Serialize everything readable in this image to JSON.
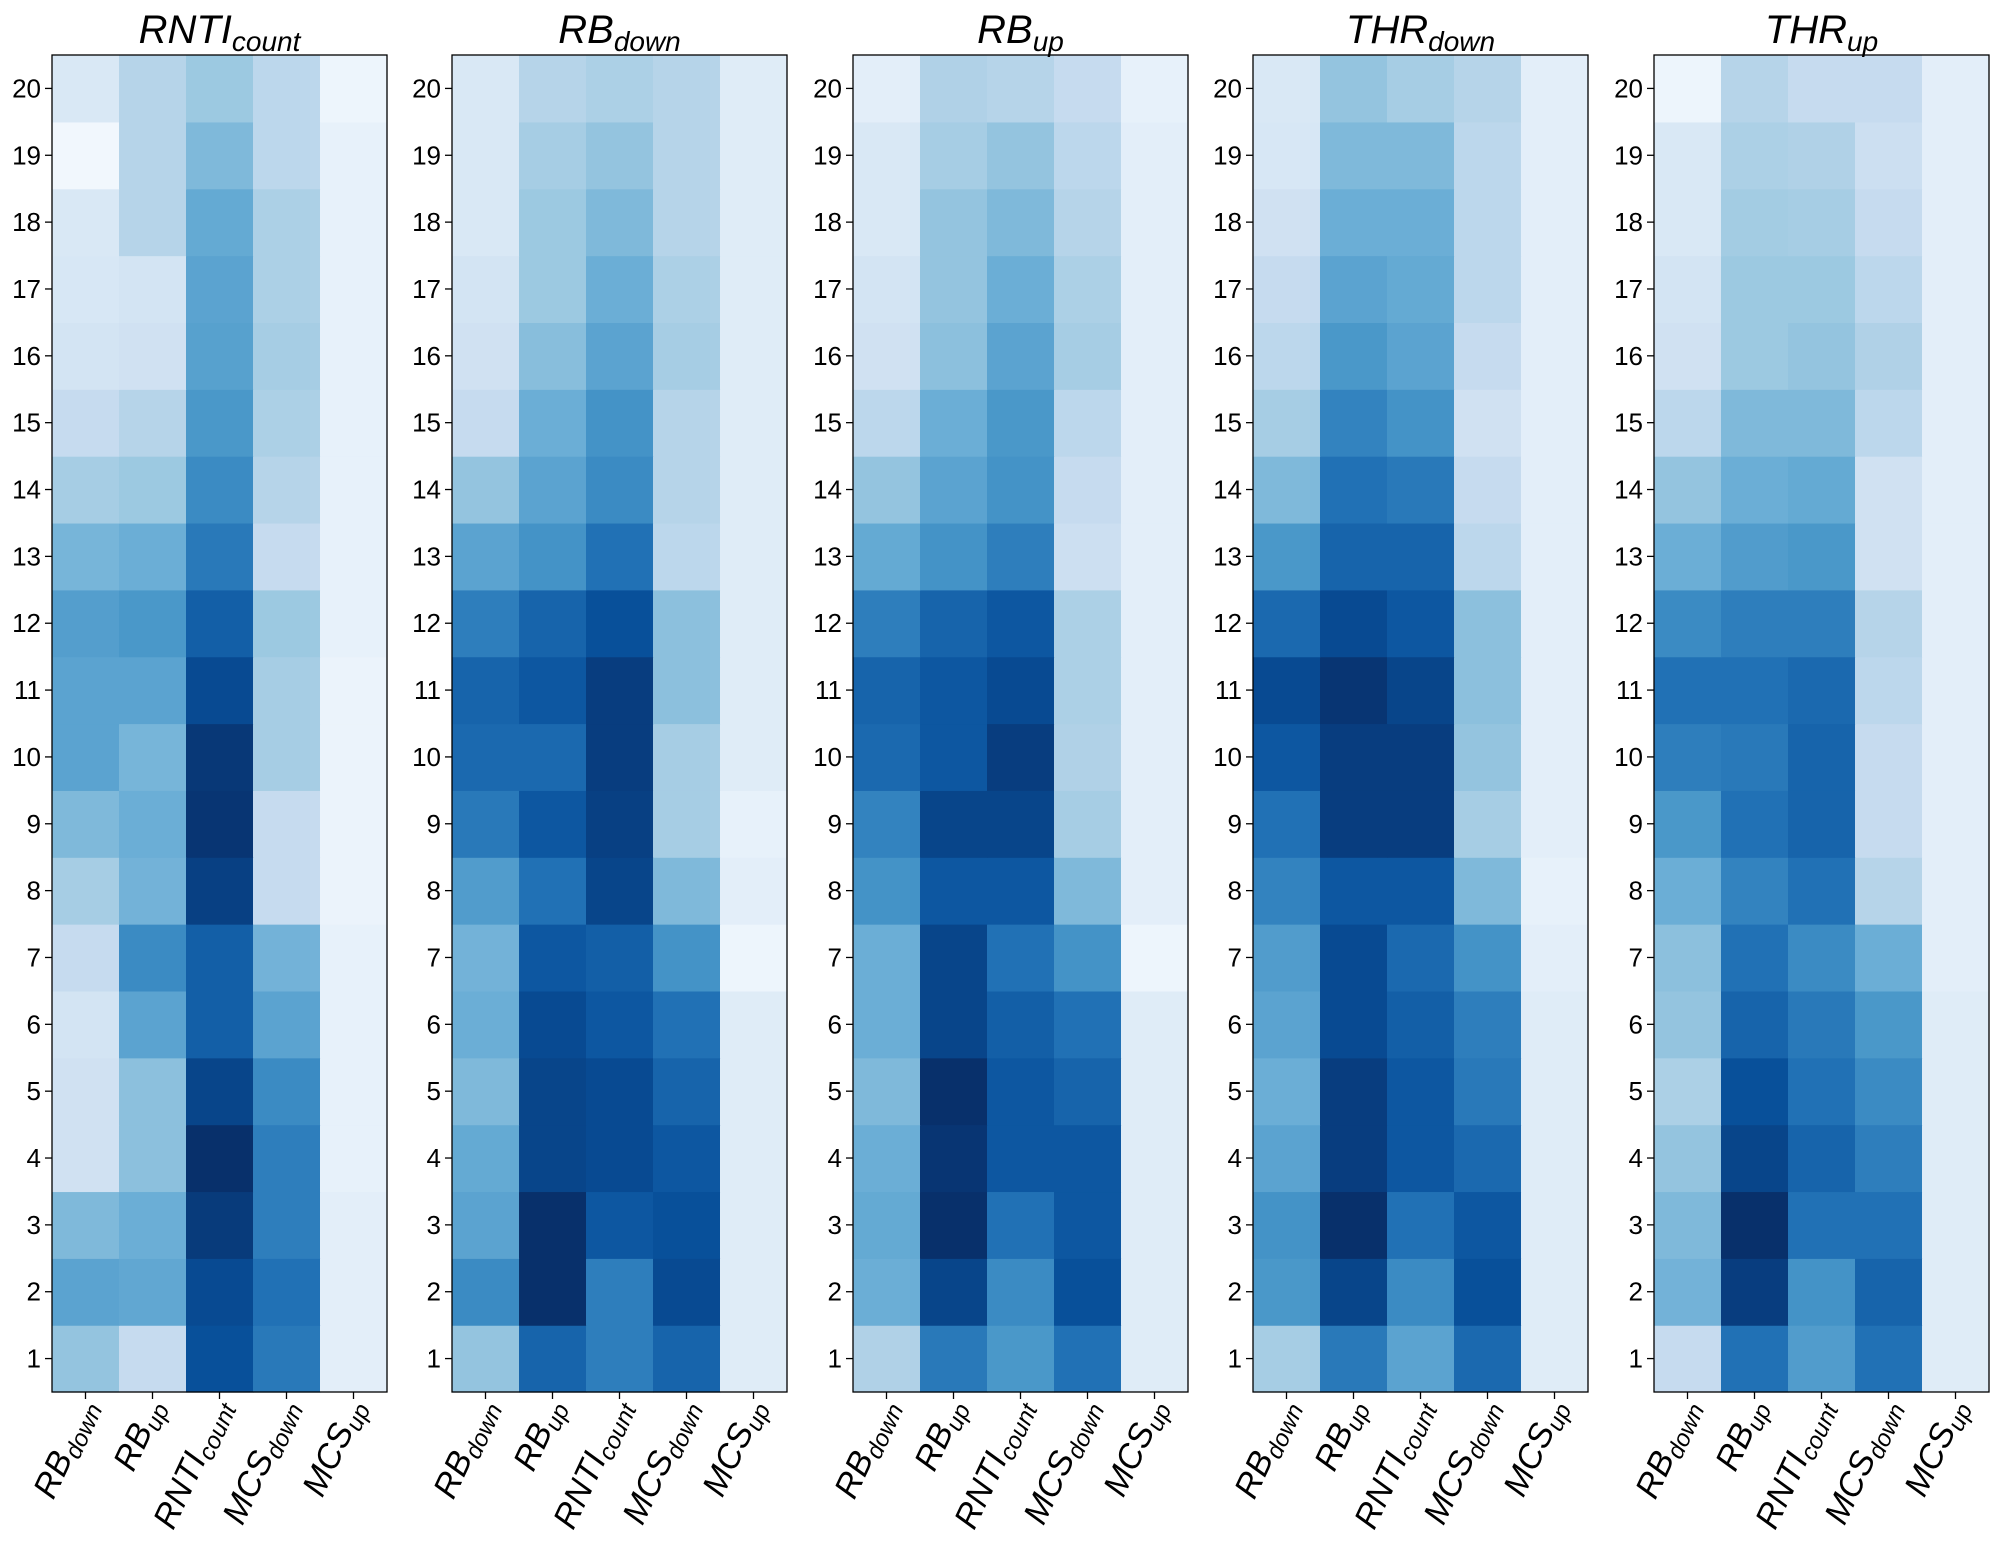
{
  "figure": {
    "row_labels": [
      "1",
      "2",
      "3",
      "4",
      "5",
      "6",
      "7",
      "8",
      "9",
      "10",
      "11",
      "12",
      "13",
      "14",
      "15",
      "16",
      "17",
      "18",
      "19",
      "20"
    ],
    "col_labels": [
      {
        "base": "RB",
        "sub": "down"
      },
      {
        "base": "RB",
        "sub": "up"
      },
      {
        "base": "RNTI",
        "sub": "count"
      },
      {
        "base": "MCS",
        "sub": "down"
      },
      {
        "base": "MCS",
        "sub": "up"
      }
    ],
    "colormap": "Blues",
    "colors": {
      "low": "#f7fbff",
      "high": "#08306b"
    }
  },
  "chart_data": [
    {
      "type": "heatmap",
      "title": {
        "base": "RNTI",
        "sub": "count"
      },
      "rows": [
        "1",
        "2",
        "3",
        "4",
        "5",
        "6",
        "7",
        "8",
        "9",
        "10",
        "11",
        "12",
        "13",
        "14",
        "15",
        "16",
        "17",
        "18",
        "19",
        "20"
      ],
      "columns": [
        "RB_down",
        "RB_up",
        "RNTI_count",
        "MCS_down",
        "MCS_up"
      ],
      "values": [
        [
          0.4,
          0.25,
          0.88,
          0.72,
          0.1
        ],
        [
          0.55,
          0.53,
          0.9,
          0.75,
          0.1
        ],
        [
          0.45,
          0.5,
          0.96,
          0.7,
          0.1
        ],
        [
          0.2,
          0.42,
          1.0,
          0.7,
          0.08
        ],
        [
          0.2,
          0.42,
          0.92,
          0.65,
          0.08
        ],
        [
          0.18,
          0.55,
          0.82,
          0.55,
          0.08
        ],
        [
          0.25,
          0.65,
          0.82,
          0.48,
          0.08
        ],
        [
          0.35,
          0.48,
          0.94,
          0.25,
          0.06
        ],
        [
          0.45,
          0.5,
          0.98,
          0.25,
          0.06
        ],
        [
          0.55,
          0.47,
          0.97,
          0.35,
          0.06
        ],
        [
          0.55,
          0.55,
          0.9,
          0.35,
          0.06
        ],
        [
          0.57,
          0.6,
          0.82,
          0.38,
          0.08
        ],
        [
          0.47,
          0.5,
          0.72,
          0.25,
          0.08
        ],
        [
          0.35,
          0.38,
          0.65,
          0.3,
          0.08
        ],
        [
          0.25,
          0.3,
          0.6,
          0.33,
          0.08
        ],
        [
          0.18,
          0.2,
          0.56,
          0.35,
          0.08
        ],
        [
          0.16,
          0.18,
          0.55,
          0.33,
          0.08
        ],
        [
          0.15,
          0.3,
          0.52,
          0.33,
          0.08
        ],
        [
          0.03,
          0.3,
          0.45,
          0.28,
          0.08
        ],
        [
          0.15,
          0.3,
          0.38,
          0.28,
          0.05
        ]
      ]
    },
    {
      "type": "heatmap",
      "title": {
        "base": "RB",
        "sub": "down"
      },
      "rows": [
        "1",
        "2",
        "3",
        "4",
        "5",
        "6",
        "7",
        "8",
        "9",
        "10",
        "11",
        "12",
        "13",
        "14",
        "15",
        "16",
        "17",
        "18",
        "19",
        "20"
      ],
      "columns": [
        "RB_down",
        "RB_up",
        "RNTI_count",
        "MCS_down",
        "MCS_up"
      ],
      "values": [
        [
          0.4,
          0.8,
          0.7,
          0.8,
          0.12
        ],
        [
          0.65,
          1.0,
          0.7,
          0.9,
          0.12
        ],
        [
          0.55,
          1.0,
          0.85,
          0.88,
          0.12
        ],
        [
          0.52,
          0.92,
          0.9,
          0.85,
          0.12
        ],
        [
          0.45,
          0.92,
          0.9,
          0.8,
          0.12
        ],
        [
          0.5,
          0.9,
          0.85,
          0.75,
          0.12
        ],
        [
          0.48,
          0.85,
          0.82,
          0.62,
          0.05
        ],
        [
          0.58,
          0.75,
          0.92,
          0.45,
          0.1
        ],
        [
          0.72,
          0.85,
          0.94,
          0.35,
          0.08
        ],
        [
          0.78,
          0.78,
          0.95,
          0.35,
          0.12
        ],
        [
          0.8,
          0.85,
          0.95,
          0.42,
          0.12
        ],
        [
          0.7,
          0.8,
          0.88,
          0.42,
          0.12
        ],
        [
          0.55,
          0.62,
          0.75,
          0.28,
          0.12
        ],
        [
          0.4,
          0.55,
          0.65,
          0.3,
          0.12
        ],
        [
          0.25,
          0.5,
          0.62,
          0.3,
          0.12
        ],
        [
          0.2,
          0.43,
          0.55,
          0.35,
          0.12
        ],
        [
          0.18,
          0.38,
          0.5,
          0.33,
          0.12
        ],
        [
          0.15,
          0.38,
          0.45,
          0.3,
          0.12
        ],
        [
          0.15,
          0.35,
          0.4,
          0.3,
          0.12
        ],
        [
          0.15,
          0.3,
          0.33,
          0.3,
          0.12
        ]
      ]
    },
    {
      "type": "heatmap",
      "title": {
        "base": "RB",
        "sub": "up"
      },
      "rows": [
        "1",
        "2",
        "3",
        "4",
        "5",
        "6",
        "7",
        "8",
        "9",
        "10",
        "11",
        "12",
        "13",
        "14",
        "15",
        "16",
        "17",
        "18",
        "19",
        "20"
      ],
      "columns": [
        "RB_down",
        "RB_up",
        "RNTI_count",
        "MCS_down",
        "MCS_up"
      ],
      "values": [
        [
          0.32,
          0.72,
          0.6,
          0.75,
          0.12
        ],
        [
          0.5,
          0.92,
          0.65,
          0.88,
          0.12
        ],
        [
          0.52,
          1.0,
          0.75,
          0.85,
          0.12
        ],
        [
          0.5,
          0.98,
          0.85,
          0.85,
          0.12
        ],
        [
          0.45,
          1.0,
          0.85,
          0.8,
          0.12
        ],
        [
          0.5,
          0.92,
          0.82,
          0.75,
          0.12
        ],
        [
          0.5,
          0.92,
          0.75,
          0.62,
          0.05
        ],
        [
          0.62,
          0.85,
          0.85,
          0.45,
          0.1
        ],
        [
          0.68,
          0.92,
          0.92,
          0.35,
          0.1
        ],
        [
          0.78,
          0.85,
          0.95,
          0.32,
          0.1
        ],
        [
          0.8,
          0.85,
          0.9,
          0.33,
          0.1
        ],
        [
          0.7,
          0.8,
          0.85,
          0.33,
          0.1
        ],
        [
          0.52,
          0.62,
          0.7,
          0.22,
          0.1
        ],
        [
          0.4,
          0.55,
          0.62,
          0.25,
          0.1
        ],
        [
          0.28,
          0.5,
          0.6,
          0.28,
          0.1
        ],
        [
          0.2,
          0.42,
          0.55,
          0.35,
          0.1
        ],
        [
          0.18,
          0.4,
          0.5,
          0.33,
          0.1
        ],
        [
          0.15,
          0.4,
          0.45,
          0.3,
          0.1
        ],
        [
          0.15,
          0.35,
          0.4,
          0.28,
          0.1
        ],
        [
          0.1,
          0.32,
          0.3,
          0.25,
          0.08
        ]
      ]
    },
    {
      "type": "heatmap",
      "title": {
        "base": "THR",
        "sub": "down"
      },
      "rows": [
        "1",
        "2",
        "3",
        "4",
        "5",
        "6",
        "7",
        "8",
        "9",
        "10",
        "11",
        "12",
        "13",
        "14",
        "15",
        "16",
        "17",
        "18",
        "19",
        "20"
      ],
      "columns": [
        "RB_down",
        "RB_up",
        "RNTI_count",
        "MCS_down",
        "MCS_up"
      ],
      "values": [
        [
          0.35,
          0.72,
          0.55,
          0.78,
          0.12
        ],
        [
          0.6,
          0.92,
          0.65,
          0.88,
          0.12
        ],
        [
          0.62,
          1.0,
          0.75,
          0.85,
          0.12
        ],
        [
          0.55,
          0.95,
          0.85,
          0.78,
          0.12
        ],
        [
          0.5,
          0.95,
          0.85,
          0.72,
          0.12
        ],
        [
          0.55,
          0.9,
          0.82,
          0.7,
          0.12
        ],
        [
          0.58,
          0.9,
          0.78,
          0.62,
          0.1
        ],
        [
          0.68,
          0.85,
          0.85,
          0.45,
          0.08
        ],
        [
          0.75,
          0.95,
          0.95,
          0.35,
          0.1
        ],
        [
          0.85,
          0.95,
          0.95,
          0.4,
          0.1
        ],
        [
          0.9,
          0.98,
          0.92,
          0.42,
          0.1
        ],
        [
          0.78,
          0.9,
          0.85,
          0.42,
          0.1
        ],
        [
          0.6,
          0.8,
          0.8,
          0.28,
          0.1
        ],
        [
          0.45,
          0.75,
          0.72,
          0.25,
          0.1
        ],
        [
          0.35,
          0.68,
          0.62,
          0.2,
          0.1
        ],
        [
          0.28,
          0.6,
          0.55,
          0.25,
          0.1
        ],
        [
          0.25,
          0.55,
          0.52,
          0.28,
          0.1
        ],
        [
          0.2,
          0.5,
          0.5,
          0.28,
          0.1
        ],
        [
          0.16,
          0.45,
          0.45,
          0.28,
          0.1
        ],
        [
          0.15,
          0.4,
          0.35,
          0.3,
          0.1
        ]
      ]
    },
    {
      "type": "heatmap",
      "title": {
        "base": "THR",
        "sub": "up"
      },
      "rows": [
        "1",
        "2",
        "3",
        "4",
        "5",
        "6",
        "7",
        "8",
        "9",
        "10",
        "11",
        "12",
        "13",
        "14",
        "15",
        "16",
        "17",
        "18",
        "19",
        "20"
      ],
      "columns": [
        "RB_down",
        "RB_up",
        "RNTI_count",
        "MCS_down",
        "MCS_up"
      ],
      "values": [
        [
          0.25,
          0.75,
          0.58,
          0.75,
          0.12
        ],
        [
          0.48,
          0.95,
          0.62,
          0.8,
          0.12
        ],
        [
          0.45,
          1.0,
          0.75,
          0.75,
          0.12
        ],
        [
          0.4,
          0.92,
          0.8,
          0.7,
          0.12
        ],
        [
          0.33,
          0.88,
          0.75,
          0.65,
          0.12
        ],
        [
          0.4,
          0.8,
          0.72,
          0.6,
          0.12
        ],
        [
          0.42,
          0.75,
          0.65,
          0.5,
          0.1
        ],
        [
          0.5,
          0.68,
          0.75,
          0.3,
          0.1
        ],
        [
          0.6,
          0.75,
          0.8,
          0.25,
          0.1
        ],
        [
          0.7,
          0.72,
          0.8,
          0.25,
          0.1
        ],
        [
          0.75,
          0.75,
          0.78,
          0.28,
          0.1
        ],
        [
          0.65,
          0.7,
          0.7,
          0.3,
          0.1
        ],
        [
          0.5,
          0.58,
          0.6,
          0.2,
          0.1
        ],
        [
          0.4,
          0.5,
          0.52,
          0.2,
          0.1
        ],
        [
          0.28,
          0.45,
          0.45,
          0.28,
          0.1
        ],
        [
          0.2,
          0.38,
          0.4,
          0.32,
          0.1
        ],
        [
          0.18,
          0.38,
          0.38,
          0.28,
          0.1
        ],
        [
          0.15,
          0.36,
          0.35,
          0.25,
          0.1
        ],
        [
          0.15,
          0.33,
          0.32,
          0.22,
          0.1
        ],
        [
          0.05,
          0.3,
          0.25,
          0.25,
          0.1
        ]
      ]
    }
  ]
}
